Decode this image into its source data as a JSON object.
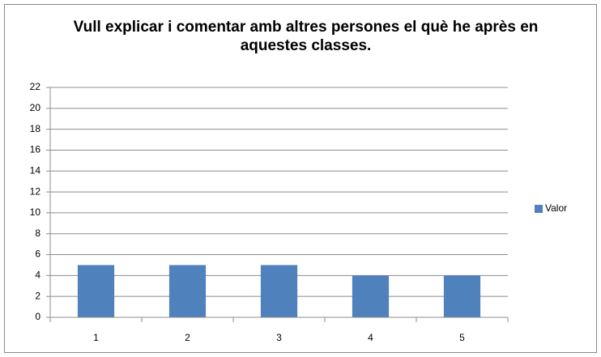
{
  "chart_data": {
    "type": "bar",
    "title": "Vull explicar i comentar amb altres persones el què he après en aquestes classes.",
    "categories": [
      "1",
      "2",
      "3",
      "4",
      "5"
    ],
    "series": [
      {
        "name": "Valor",
        "color": "#4f81bd",
        "values": [
          5,
          5,
          5,
          4,
          4
        ]
      }
    ],
    "ylim": [
      0,
      22
    ],
    "yticks": [
      0,
      2,
      4,
      6,
      8,
      10,
      12,
      14,
      16,
      18,
      20,
      22
    ],
    "grid": true,
    "legend": "right"
  }
}
